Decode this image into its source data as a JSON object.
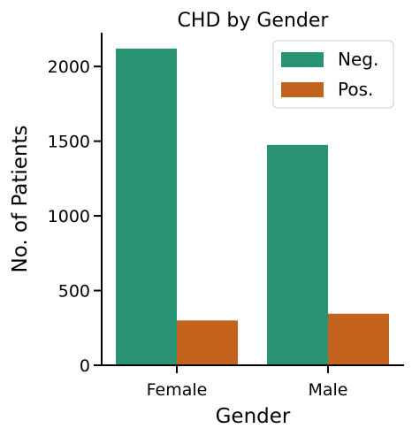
{
  "chart_data": {
    "type": "bar",
    "title": "CHD by Gender",
    "xlabel": "Gender",
    "ylabel": "No. of Patients",
    "categories": [
      "Female",
      "Male"
    ],
    "series": [
      {
        "name": "Neg.",
        "color": "#2a9373",
        "values": [
          2120,
          1475
        ]
      },
      {
        "name": "Pos.",
        "color": "#c2621c",
        "values": [
          300,
          345
        ]
      }
    ],
    "yticks": [
      0,
      500,
      1000,
      1500,
      2000
    ],
    "ylim": [
      0,
      2226
    ],
    "grid": false,
    "legend_position": "top-right"
  }
}
